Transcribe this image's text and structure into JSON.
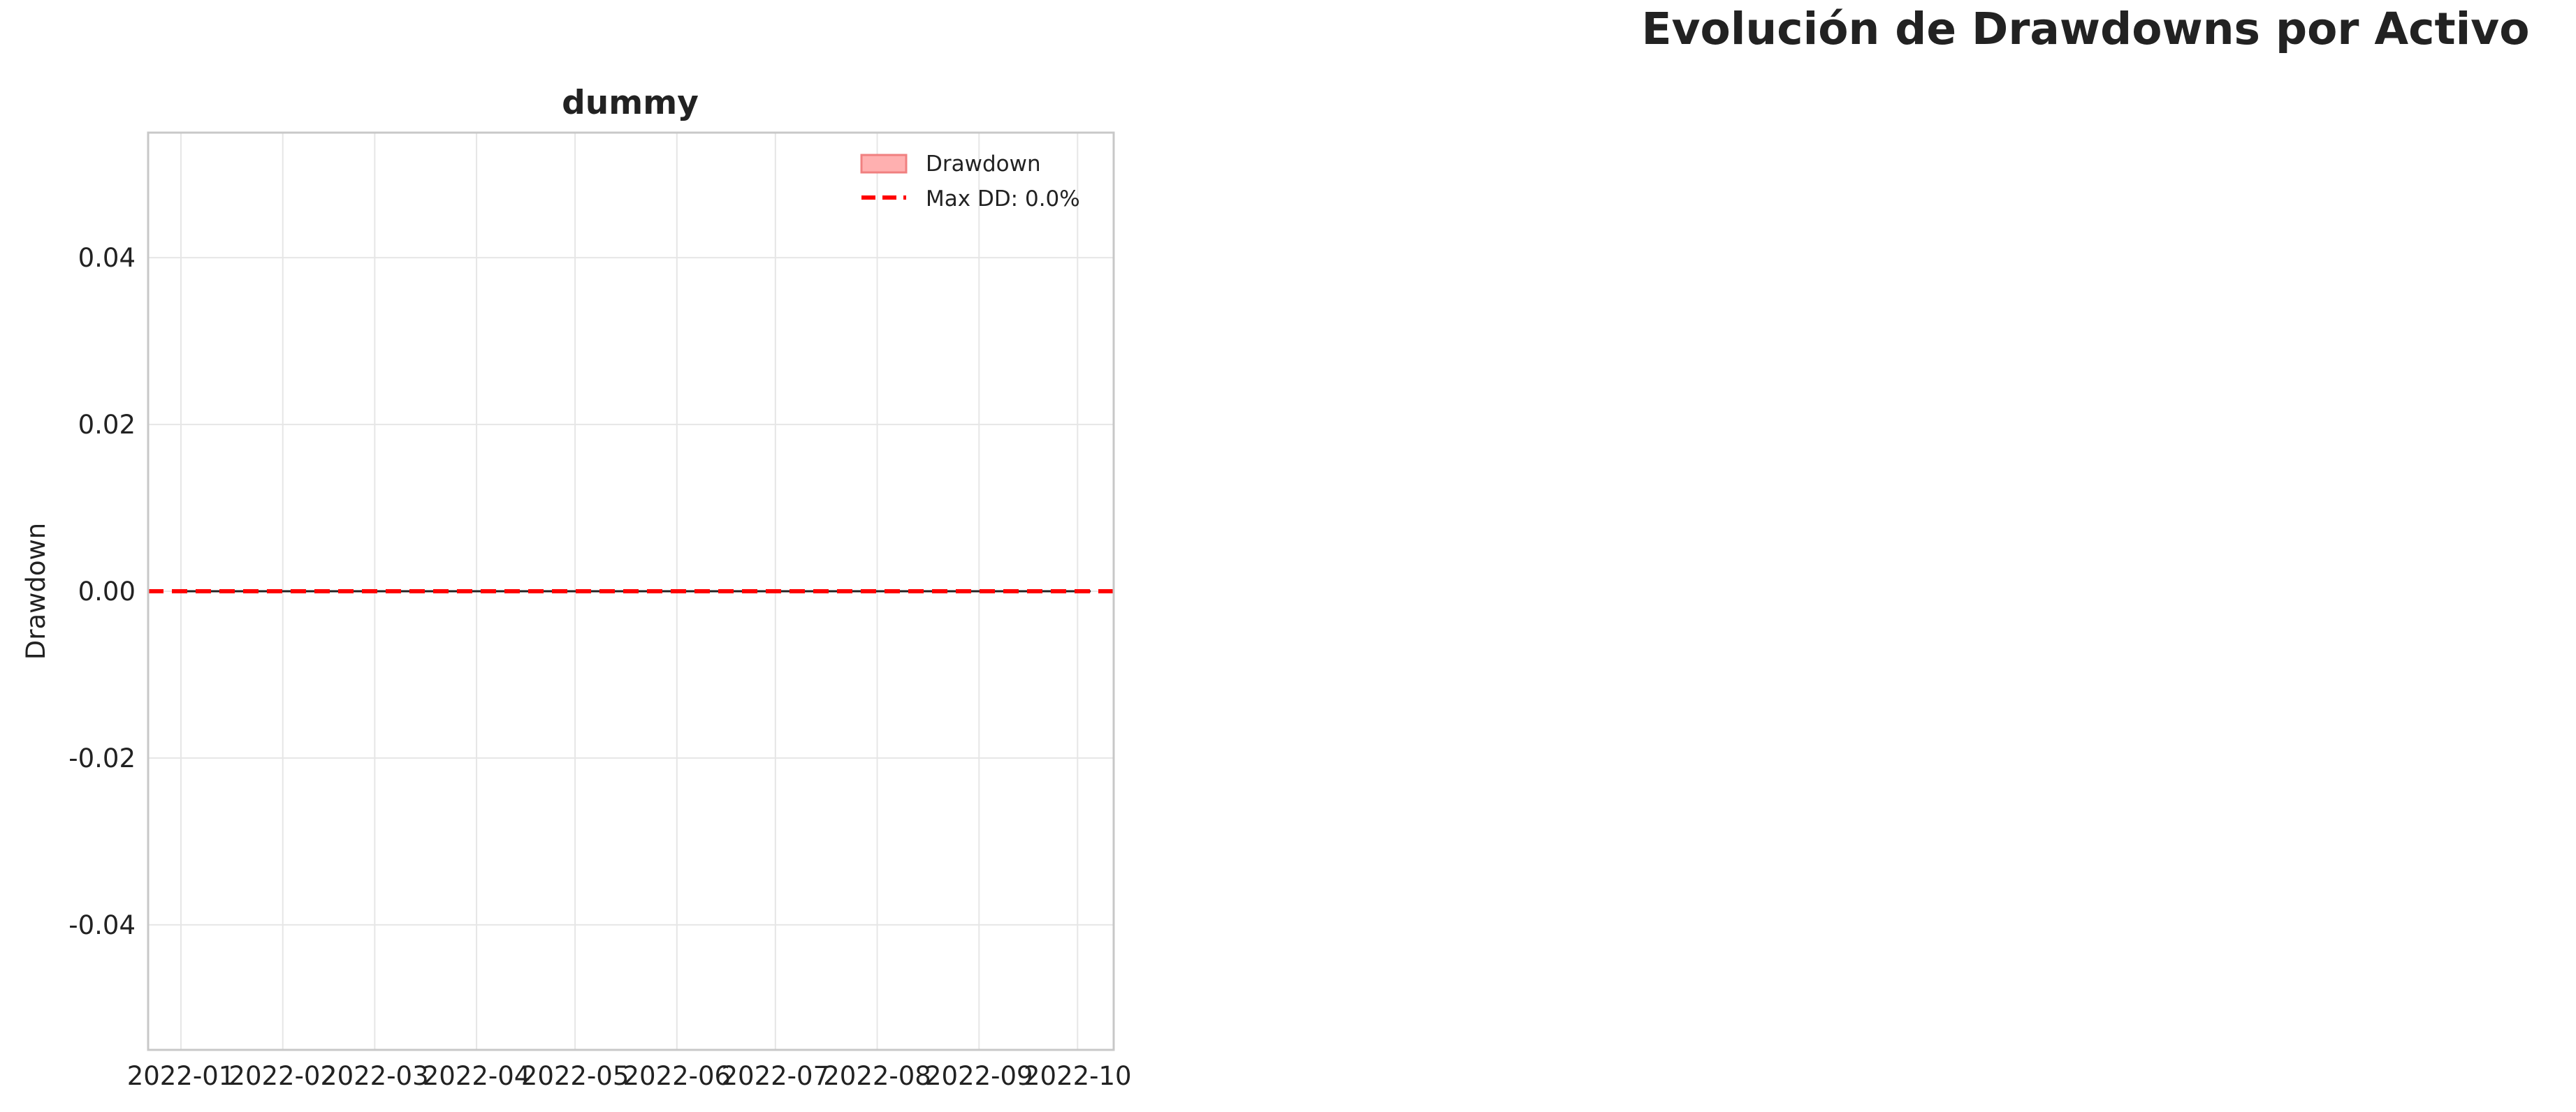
{
  "figure": {
    "suptitle": "Evolución de Drawdowns por Activo"
  },
  "chart_data": {
    "type": "area",
    "title": "dummy",
    "xlabel": "",
    "ylabel": "Drawdown",
    "x_axis": "date",
    "xlim": [
      "2021-12-22",
      "2022-10-12"
    ],
    "ylim": [
      -0.055,
      0.055
    ],
    "x_tick_labels": [
      "2022-01",
      "2022-02",
      "2022-03",
      "2022-04",
      "2022-05",
      "2022-06",
      "2022-07",
      "2022-08",
      "2022-09",
      "2022-10"
    ],
    "x_ticks": [
      "2022-01-01",
      "2022-02-01",
      "2022-03-01",
      "2022-04-01",
      "2022-05-01",
      "2022-06-01",
      "2022-07-01",
      "2022-08-01",
      "2022-09-01",
      "2022-10-01"
    ],
    "y_ticks": [
      -0.04,
      -0.02,
      0.0,
      0.02,
      0.04
    ],
    "y_tick_labels": [
      "-0.04",
      "-0.02",
      "0.00",
      "0.02",
      "0.04"
    ],
    "grid": true,
    "legend_position": "upper right",
    "series": [
      {
        "name": "Drawdown",
        "kind": "area",
        "color": "#f08080",
        "x": [
          "2022-01-01",
          "2022-10-05"
        ],
        "values": [
          0.0,
          0.0
        ]
      },
      {
        "name": "Max DD: 0.0%",
        "kind": "hline",
        "color": "#ff0000",
        "style": "dashed",
        "value": 0.0
      }
    ],
    "data_line_color": "#222222"
  }
}
